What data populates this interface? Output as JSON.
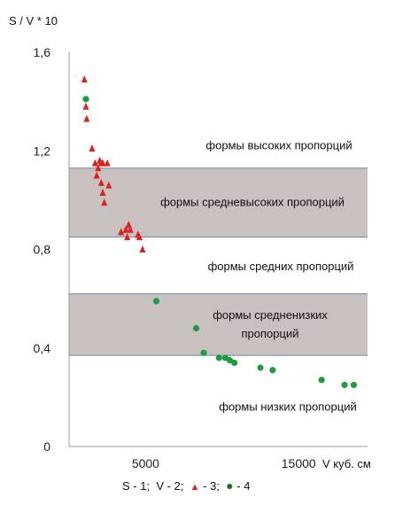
{
  "chart_data": {
    "type": "scatter",
    "ylabel": "S / V * 10",
    "xlabel": "V куб. см",
    "xlim": [
      0,
      19500
    ],
    "ylim": [
      0,
      1.6
    ],
    "x_ticks": [
      5000,
      15000
    ],
    "y_ticks": [
      "0",
      "0,4",
      "0,8",
      "1,2",
      "1,6"
    ],
    "y_tick_values": [
      0,
      0.4,
      0.8,
      1.2,
      1.6
    ],
    "bands": [
      {
        "label": "формы средневысоких пропорций",
        "y0": 0.85,
        "y1": 1.13,
        "shaded": true
      },
      {
        "label": "формы средненизких пропорций",
        "label_lines": [
          "формы средненизких",
          "пропорций"
        ],
        "y0": 0.37,
        "y1": 0.62,
        "shaded": true
      }
    ],
    "zone_labels": [
      {
        "text": "формы высоких пропорций",
        "y": 1.22
      },
      {
        "text": "формы средних пропорций",
        "y": 0.73
      },
      {
        "text": "формы низких пропорций",
        "y": 0.16
      }
    ],
    "series": [
      {
        "marker": "triangle",
        "color": "#e0201c",
        "points": [
          [
            1000,
            1.49
          ],
          [
            1100,
            1.38
          ],
          [
            1150,
            1.33
          ],
          [
            1500,
            1.21
          ],
          [
            1700,
            1.15
          ],
          [
            1800,
            1.1
          ],
          [
            1900,
            1.13
          ],
          [
            2000,
            1.16
          ],
          [
            2100,
            1.15
          ],
          [
            2200,
            1.15
          ],
          [
            2100,
            1.07
          ],
          [
            2200,
            1.03
          ],
          [
            2300,
            0.99
          ],
          [
            2500,
            1.15
          ],
          [
            2600,
            1.06
          ],
          [
            3400,
            0.87
          ],
          [
            3700,
            0.88
          ],
          [
            3900,
            0.9
          ],
          [
            4000,
            0.88
          ],
          [
            3800,
            0.85
          ],
          [
            4500,
            0.86
          ],
          [
            4600,
            0.85
          ],
          [
            4800,
            0.8
          ]
        ]
      },
      {
        "marker": "circle",
        "color": "#1e9c41",
        "points": [
          [
            1100,
            1.41
          ],
          [
            5700,
            0.59
          ],
          [
            8300,
            0.48
          ],
          [
            8800,
            0.38
          ],
          [
            9800,
            0.36
          ],
          [
            10200,
            0.36
          ],
          [
            10500,
            0.35
          ],
          [
            10800,
            0.34
          ],
          [
            12500,
            0.32
          ],
          [
            13300,
            0.31
          ],
          [
            16500,
            0.27
          ],
          [
            18000,
            0.25
          ],
          [
            18600,
            0.25
          ]
        ]
      }
    ]
  },
  "legend": {
    "s_text": "S - 1;",
    "v_text": "V - 2;",
    "tri_symbol": "▲",
    "tri_text": "- 3;",
    "dot_symbol": "●",
    "dot_text": "- 4"
  }
}
